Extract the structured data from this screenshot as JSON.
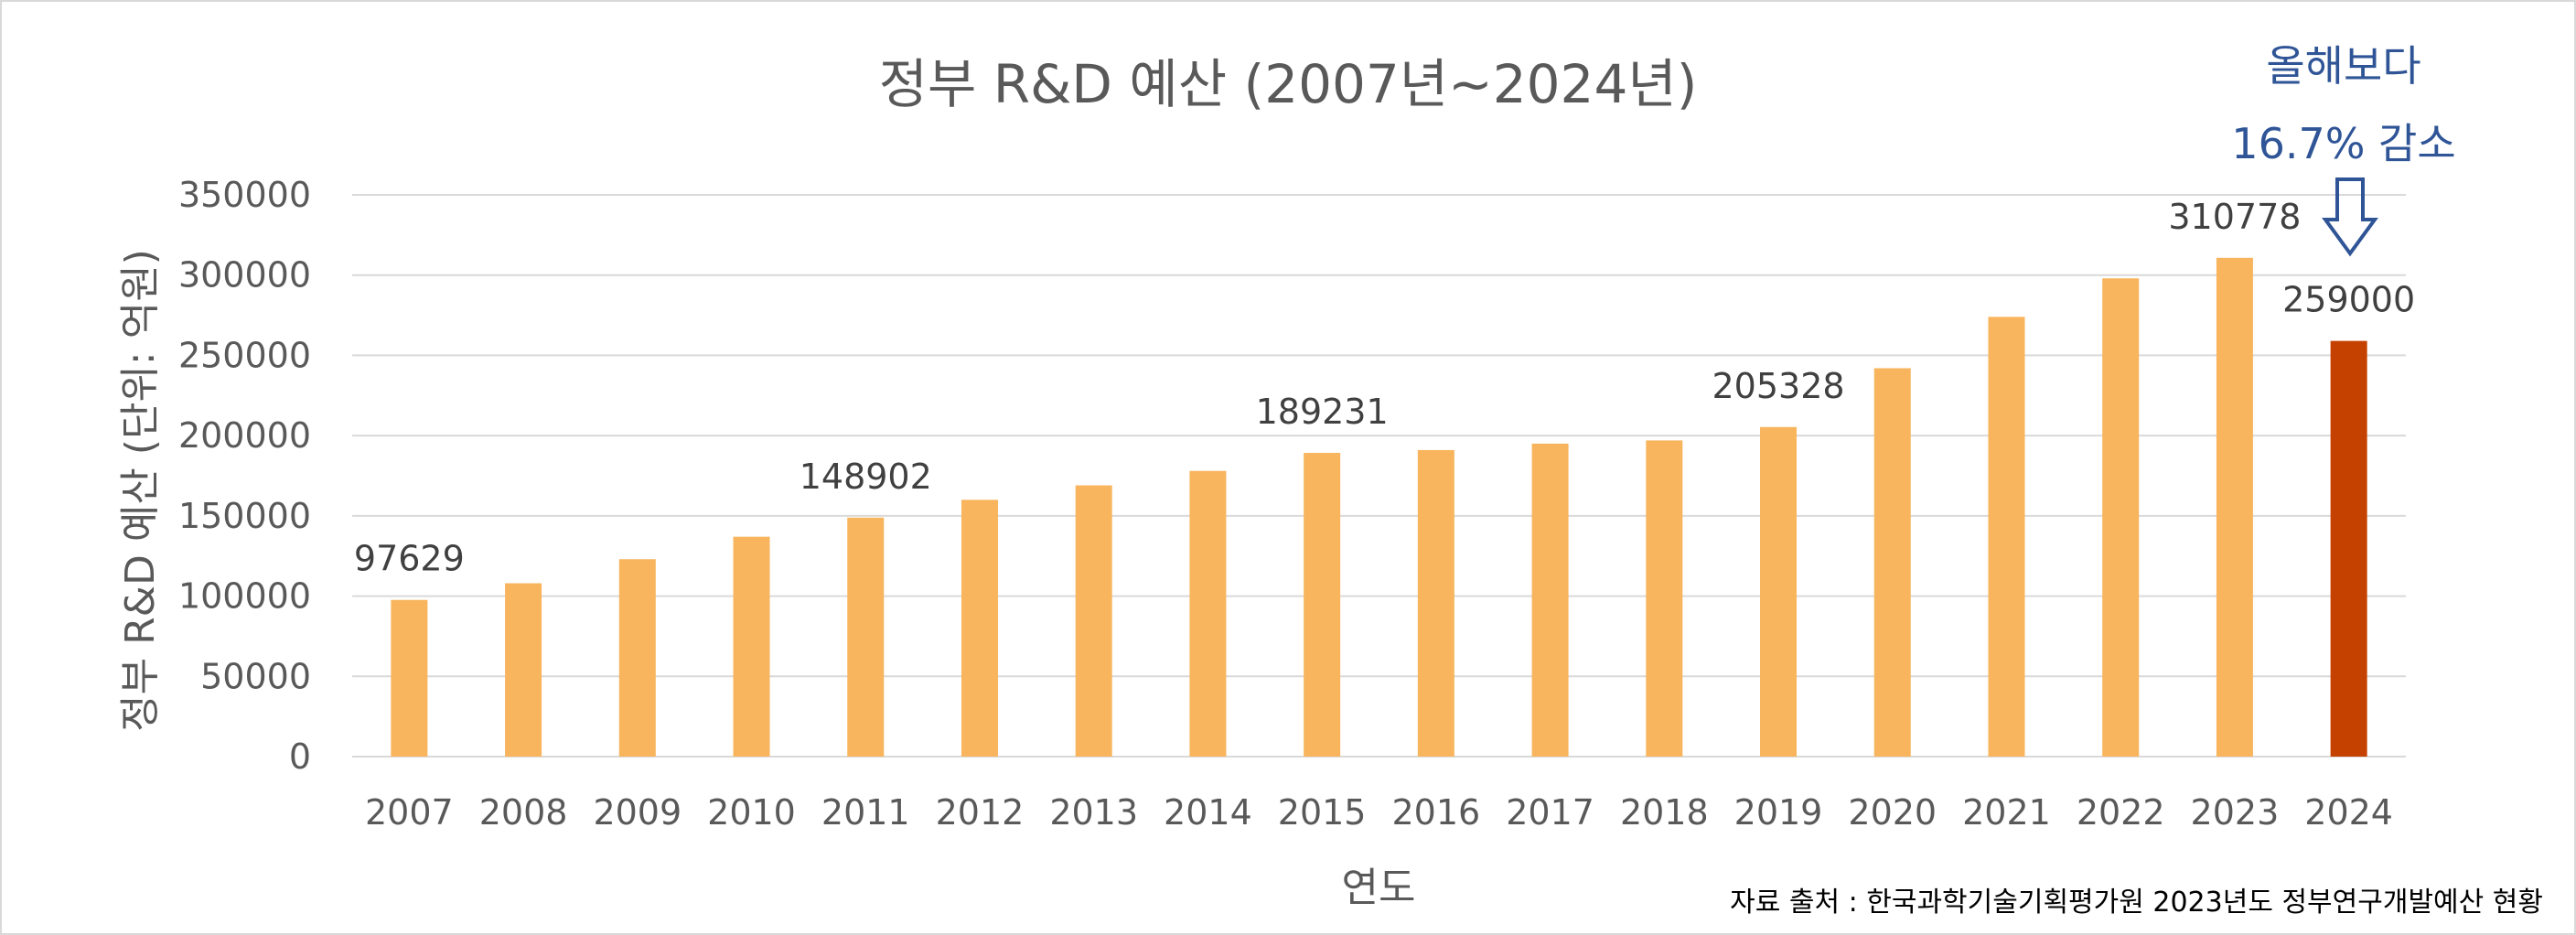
{
  "chart_data": {
    "type": "bar",
    "title": "정부 R&D 예산 (2007년~2024년)",
    "xlabel": "연도",
    "ylabel": "정부 R&D 예산 (단위: 억원)",
    "ylim": [
      0,
      350000
    ],
    "yticks": [
      0,
      50000,
      100000,
      150000,
      200000,
      250000,
      300000,
      350000
    ],
    "grid": true,
    "legend": "none",
    "categories": [
      "2007",
      "2008",
      "2009",
      "2010",
      "2011",
      "2012",
      "2013",
      "2014",
      "2015",
      "2016",
      "2017",
      "2018",
      "2019",
      "2020",
      "2021",
      "2022",
      "2023",
      "2024"
    ],
    "values": [
      97629,
      108000,
      123000,
      137000,
      148902,
      160000,
      169000,
      178000,
      189231,
      191000,
      195000,
      197000,
      205328,
      242000,
      274000,
      298000,
      310778,
      259000
    ],
    "data_labels": [
      {
        "category": "2007",
        "text": "97629"
      },
      {
        "category": "2011",
        "text": "148902"
      },
      {
        "category": "2015",
        "text": "189231"
      },
      {
        "category": "2019",
        "text": "205328"
      },
      {
        "category": "2023",
        "text": "310778"
      },
      {
        "category": "2024",
        "text": "259000"
      }
    ],
    "colors": {
      "bar": "#f8b55e",
      "highlight": "#c54100",
      "grid": "#d9d9d9",
      "annotation": "#2f5597"
    },
    "highlight_category": "2024",
    "annotation": {
      "line1": "올해보다",
      "line2": "16.7% 감소",
      "icon": "down-arrow-icon"
    },
    "source": "자료 출처 : 한국과학기술기획평가원   2023년도 정부연구개발예산 현황"
  }
}
